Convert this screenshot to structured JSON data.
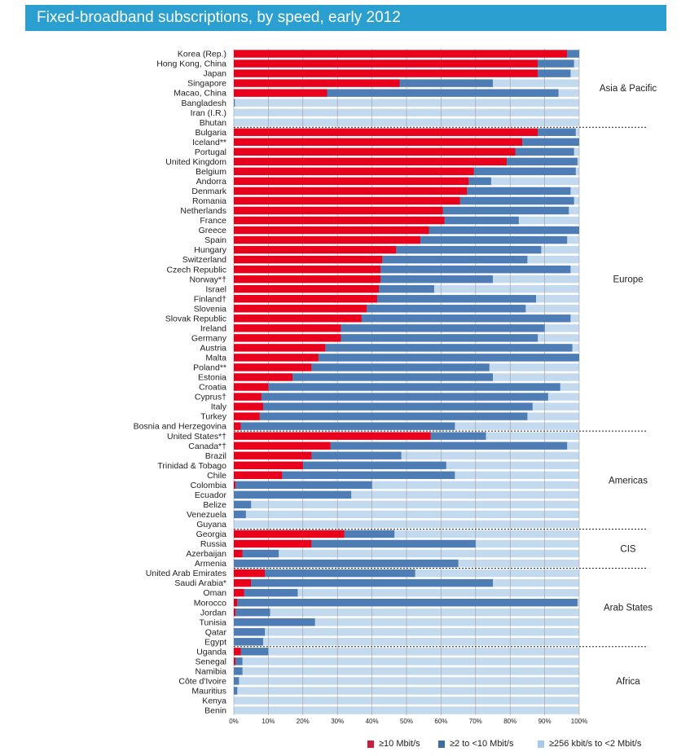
{
  "header": {
    "title": "Fixed-broadband subscriptions, by speed, early 2012"
  },
  "legend": {
    "high": "≥10 Mbit/s",
    "mid": "≥2 to <10 Mbit/s",
    "low": "≥256 kbit/s to <2 Mbit/s"
  },
  "colors": {
    "high": "#e8001c",
    "mid": "#4e7db6",
    "low": "#c3d9ee",
    "title_bg": "#2a9fd0",
    "legend_high": "#c81e3a",
    "legend_mid": "#3f6da3",
    "legend_low": "#a9cbe8"
  },
  "chart_data": {
    "type": "bar",
    "orientation": "horizontal",
    "stacked": true,
    "title": "Fixed-broadband subscriptions, by speed, early 2012",
    "xlim": [
      0,
      100
    ],
    "x_tick_labels": [
      "0%",
      "10%",
      "20%",
      "30%",
      "40%",
      "50%",
      "60%",
      "70%",
      "80%",
      "90%",
      "100%"
    ],
    "series_names": [
      "≥10 Mbit/s",
      "≥2 to <10 Mbit/s",
      "≥256 kbit/s to <2 Mbit/s"
    ],
    "groups": [
      {
        "name": "Asia & Pacific",
        "rows": [
          {
            "label": "Korea (Rep.)",
            "high": 96.5,
            "mid": 3.5
          },
          {
            "label": "Hong Kong, China",
            "high": 88,
            "mid": 10.5
          },
          {
            "label": "Japan",
            "high": 88,
            "mid": 9.5
          },
          {
            "label": "Singapore",
            "high": 48,
            "mid": 27
          },
          {
            "label": "Macao, China",
            "high": 27,
            "mid": 67
          },
          {
            "label": "Bangladesh",
            "high": 0,
            "mid": 0.3
          },
          {
            "label": "Iran (I.R.)",
            "high": 0,
            "mid": 0
          },
          {
            "label": "Bhutan",
            "high": 0,
            "mid": 0
          }
        ]
      },
      {
        "name": "Europe",
        "rows": [
          {
            "label": "Bulgaria",
            "high": 88,
            "mid": 11
          },
          {
            "label": "Iceland**",
            "high": 83.5,
            "mid": 16.5
          },
          {
            "label": "Portugal",
            "high": 81.5,
            "mid": 17
          },
          {
            "label": "United Kingdom",
            "high": 79,
            "mid": 20.5
          },
          {
            "label": "Belgium",
            "high": 69.5,
            "mid": 29.5
          },
          {
            "label": "Andorra",
            "high": 68,
            "mid": 6.5
          },
          {
            "label": "Denmark",
            "high": 67.5,
            "mid": 30
          },
          {
            "label": "Romania",
            "high": 65.5,
            "mid": 33
          },
          {
            "label": "Netherlands",
            "high": 60.5,
            "mid": 36.5
          },
          {
            "label": "France",
            "high": 61,
            "mid": 21.5
          },
          {
            "label": "Greece",
            "high": 56.5,
            "mid": 43.5
          },
          {
            "label": "Spain",
            "high": 54,
            "mid": 42.5
          },
          {
            "label": "Hungary",
            "high": 47,
            "mid": 42
          },
          {
            "label": "Switzerland",
            "high": 43,
            "mid": 42
          },
          {
            "label": "Czech Republic",
            "high": 42.5,
            "mid": 55
          },
          {
            "label": "Norway*†",
            "high": 42.5,
            "mid": 32.5
          },
          {
            "label": "Israel",
            "high": 42,
            "mid": 16
          },
          {
            "label": "Finland†",
            "high": 41.5,
            "mid": 46
          },
          {
            "label": "Slovenia",
            "high": 38.5,
            "mid": 46
          },
          {
            "label": "Slovak Republic",
            "high": 37,
            "mid": 60.5
          },
          {
            "label": "Ireland",
            "high": 31,
            "mid": 59
          },
          {
            "label": "Germany",
            "high": 31,
            "mid": 57
          },
          {
            "label": "Austria",
            "high": 26.5,
            "mid": 71.5
          },
          {
            "label": "Malta",
            "high": 24.5,
            "mid": 75.5
          },
          {
            "label": "Poland**",
            "high": 22.5,
            "mid": 51.5
          },
          {
            "label": "Estonia",
            "high": 17,
            "mid": 58
          },
          {
            "label": "Croatia",
            "high": 10,
            "mid": 84.5
          },
          {
            "label": "Cyprus†",
            "high": 8,
            "mid": 83
          },
          {
            "label": "Italy",
            "high": 8.5,
            "mid": 78
          },
          {
            "label": "Turkey",
            "high": 7.5,
            "mid": 77.5
          },
          {
            "label": "Bosnia and Herzegovina",
            "high": 2,
            "mid": 62
          }
        ]
      },
      {
        "name": "Americas",
        "rows": [
          {
            "label": "United States*†",
            "high": 57,
            "mid": 16
          },
          {
            "label": "Canada*†",
            "high": 28,
            "mid": 68.5
          },
          {
            "label": "Brazil",
            "high": 22.5,
            "mid": 26
          },
          {
            "label": "Trinidad & Tobago",
            "high": 20,
            "mid": 41.5
          },
          {
            "label": "Chile",
            "high": 14,
            "mid": 50
          },
          {
            "label": "Colombia",
            "high": 0.5,
            "mid": 39.5
          },
          {
            "label": "Ecuador",
            "high": 0,
            "mid": 34
          },
          {
            "label": "Belize",
            "high": 0,
            "mid": 5
          },
          {
            "label": "Venezuela",
            "high": 0,
            "mid": 3.5
          },
          {
            "label": "Guyana",
            "high": 0,
            "mid": 0
          }
        ]
      },
      {
        "name": "CIS",
        "rows": [
          {
            "label": "Georgia",
            "high": 32,
            "mid": 14.5
          },
          {
            "label": "Russia",
            "high": 22.5,
            "mid": 47.5
          },
          {
            "label": "Azerbaijan",
            "high": 2.5,
            "mid": 10.5
          },
          {
            "label": "Armenia",
            "high": 0,
            "mid": 65
          }
        ]
      },
      {
        "name": "Arab States",
        "rows": [
          {
            "label": "United Arab Emirates",
            "high": 9,
            "mid": 43.5
          },
          {
            "label": "Saudi Arabia*",
            "high": 5,
            "mid": 70
          },
          {
            "label": "Oman",
            "high": 3,
            "mid": 15.5
          },
          {
            "label": "Morocco",
            "high": 1,
            "mid": 98.5
          },
          {
            "label": "Jordan",
            "high": 0.5,
            "mid": 10
          },
          {
            "label": "Tunisia",
            "high": 0,
            "mid": 23.5
          },
          {
            "label": "Qatar",
            "high": 0,
            "mid": 9
          },
          {
            "label": "Egypt",
            "high": 0,
            "mid": 8.5
          }
        ]
      },
      {
        "name": "Africa",
        "rows": [
          {
            "label": "Uganda",
            "high": 2,
            "mid": 8
          },
          {
            "label": "Senegal",
            "high": 0.5,
            "mid": 2
          },
          {
            "label": "Namibia",
            "high": 0,
            "mid": 2.5
          },
          {
            "label": "Côte d'Ivoire",
            "high": 0,
            "mid": 1.5
          },
          {
            "label": "Mauritius",
            "high": 0,
            "mid": 1
          },
          {
            "label": "Kenya",
            "high": 0,
            "mid": 0
          },
          {
            "label": "Benin",
            "high": 0,
            "mid": 0
          }
        ]
      }
    ]
  }
}
